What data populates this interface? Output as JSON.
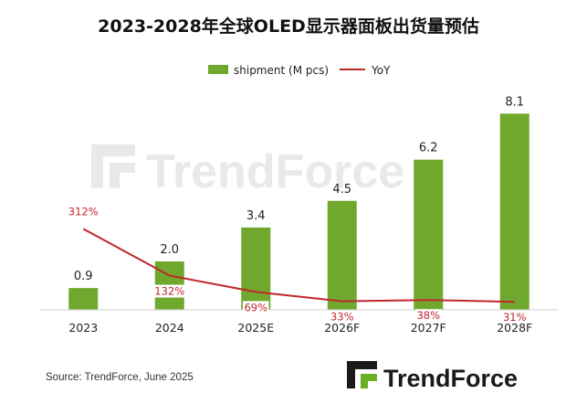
{
  "chart_data": {
    "type": "bar",
    "title": "2023-2028年全球OLED显示器面板出货量预估",
    "categories": [
      "2023",
      "2024",
      "2025E",
      "2026F",
      "2027F",
      "2028F"
    ],
    "series": [
      {
        "name": "shipment (M pcs)",
        "type": "bar",
        "color": "#70a82e",
        "values": [
          0.9,
          2.0,
          3.4,
          4.5,
          6.2,
          8.1
        ],
        "labels": [
          "0.9",
          "2.0",
          "3.4",
          "4.5",
          "6.2",
          "8.1"
        ]
      },
      {
        "name": "YoY",
        "type": "line",
        "color": "#c0272d",
        "values": [
          312,
          132,
          69,
          33,
          38,
          31
        ],
        "labels": [
          "312%",
          "132%",
          "69%",
          "33%",
          "38%",
          "31%"
        ]
      }
    ],
    "legend_position": "top-center",
    "grid": false
  },
  "source": "Source: TrendForce, June 2025",
  "logo_text": "TrendForce",
  "watermark_text": "TrendForce",
  "colors": {
    "bar": "#70a82e",
    "line": "#c0272d",
    "logo_green": "#6ab023"
  }
}
